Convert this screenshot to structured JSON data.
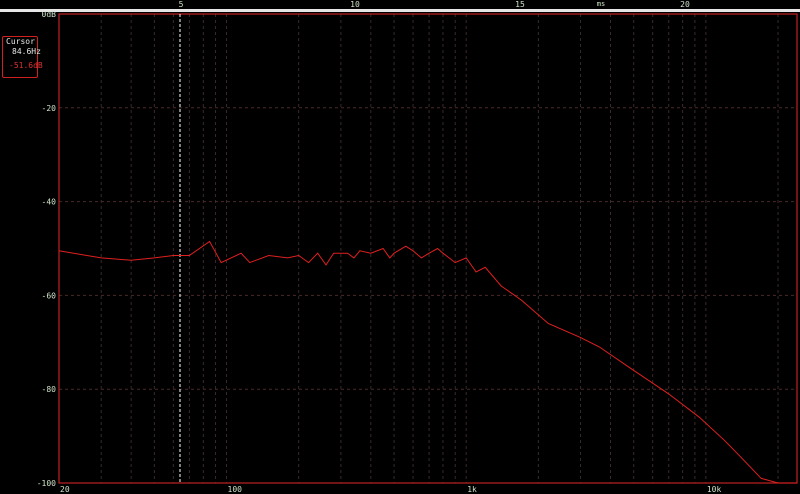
{
  "chart_data": {
    "type": "line",
    "xscale": "log",
    "xlim": [
      20,
      24000
    ],
    "ylim": [
      -100,
      0
    ],
    "grid": true,
    "x_tick_labels": [
      {
        "v": 20,
        "t": "20"
      },
      {
        "v": 100,
        "t": "100"
      },
      {
        "v": 1000,
        "t": "1k"
      },
      {
        "v": 10000,
        "t": "10k"
      }
    ],
    "y_tick_labels": [
      {
        "v": 0,
        "t": "0dB"
      },
      {
        "v": -20,
        "t": "-20"
      },
      {
        "v": -40,
        "t": "-40"
      },
      {
        "v": -60,
        "t": "-60"
      },
      {
        "v": -80,
        "t": "-80"
      },
      {
        "v": -100,
        "t": "-100"
      }
    ],
    "top_axis": {
      "unit": "ms",
      "tick_labels": [
        "5",
        "10",
        "15",
        "20"
      ]
    },
    "series": [
      {
        "color": "#e02020",
        "points": [
          [
            20,
            -50.5
          ],
          [
            30,
            -52
          ],
          [
            40,
            -52.5
          ],
          [
            50,
            -52
          ],
          [
            60,
            -51.5
          ],
          [
            70,
            -51.5
          ],
          [
            85,
            -48.5
          ],
          [
            95,
            -53
          ],
          [
            115,
            -51
          ],
          [
            125,
            -53
          ],
          [
            150,
            -51.5
          ],
          [
            180,
            -52
          ],
          [
            200,
            -51.5
          ],
          [
            220,
            -53
          ],
          [
            240,
            -51
          ],
          [
            260,
            -53.5
          ],
          [
            280,
            -51
          ],
          [
            320,
            -51
          ],
          [
            340,
            -52
          ],
          [
            360,
            -50.5
          ],
          [
            400,
            -51
          ],
          [
            450,
            -50
          ],
          [
            480,
            -52
          ],
          [
            500,
            -51
          ],
          [
            560,
            -49.5
          ],
          [
            600,
            -50.5
          ],
          [
            650,
            -52
          ],
          [
            700,
            -51
          ],
          [
            760,
            -50
          ],
          [
            800,
            -51
          ],
          [
            900,
            -53
          ],
          [
            1000,
            -52
          ],
          [
            1100,
            -55
          ],
          [
            1200,
            -54
          ],
          [
            1400,
            -58
          ],
          [
            1700,
            -61
          ],
          [
            2200,
            -66
          ],
          [
            3000,
            -69
          ],
          [
            3600,
            -71
          ],
          [
            5000,
            -76
          ],
          [
            7000,
            -81
          ],
          [
            9400,
            -86
          ],
          [
            12000,
            -91
          ],
          [
            14000,
            -94.5
          ],
          [
            17000,
            -99
          ],
          [
            20000,
            -100
          ],
          [
            24000,
            -100
          ]
        ]
      }
    ],
    "cursor": {
      "label": "Cursor",
      "frequency": "84.6Hz",
      "level": "-51.6dB"
    }
  }
}
